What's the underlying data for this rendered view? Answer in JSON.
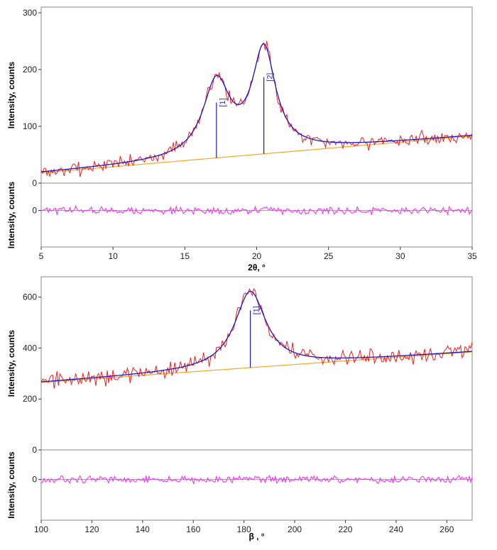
{
  "chart_data": [
    {
      "type": "line",
      "title": "",
      "xlabel": "2θ, °",
      "ylabel": "Intensity, counts",
      "residual_ylabel": "Intensity, counts",
      "xlim": [
        5,
        35
      ],
      "ylim": [
        0,
        310
      ],
      "xticks": [
        5,
        10,
        15,
        20,
        25,
        30,
        35
      ],
      "yticks": [
        0,
        100,
        200,
        300
      ],
      "residual_ylim": [
        -40,
        30
      ],
      "residual_yticks": [
        0
      ],
      "fit": {
        "background": {
          "x0": 5,
          "y0": 18,
          "x1": 35,
          "y1": 83
        },
        "peaks": [
          {
            "label": "[1]",
            "center": 17.2,
            "height": 130,
            "hwhm": 1.15
          },
          {
            "label": "[2]",
            "center": 20.5,
            "height": 180,
            "hwhm": 1.0
          }
        ]
      },
      "observed_noise": 12,
      "residual_noise": 5,
      "series": [
        {
          "role": "observed",
          "color": "#ff1a1a"
        },
        {
          "role": "fit",
          "color": "#1a1acc"
        },
        {
          "role": "background",
          "color": "#f5a623"
        },
        {
          "role": "residual",
          "color": "#ff22ff"
        }
      ],
      "grid": false
    },
    {
      "type": "line",
      "title": "",
      "xlabel": "β , °",
      "ylabel": "Intensity, counts",
      "residual_ylabel": "Intensity, counts",
      "xlim": [
        100,
        270
      ],
      "ylim": [
        0,
        680
      ],
      "xticks": [
        100,
        120,
        140,
        160,
        180,
        200,
        220,
        240,
        260
      ],
      "yticks": [
        0,
        200,
        400,
        600
      ],
      "residual_ylim": [
        -110,
        80
      ],
      "residual_yticks": [
        0
      ],
      "fit": {
        "background": {
          "x0": 100,
          "y0": 265,
          "x1": 270,
          "y1": 385
        },
        "peaks": [
          {
            "label": "[1]",
            "center": 182.5,
            "height": 300,
            "hwhm": 7.5
          }
        ]
      },
      "observed_noise": 30,
      "residual_noise": 12,
      "series": [
        {
          "role": "observed",
          "color": "#ff1a1a"
        },
        {
          "role": "fit",
          "color": "#1a1acc"
        },
        {
          "role": "background",
          "color": "#f5a623"
        },
        {
          "role": "residual",
          "color": "#ff22ff"
        }
      ],
      "grid": false
    }
  ]
}
